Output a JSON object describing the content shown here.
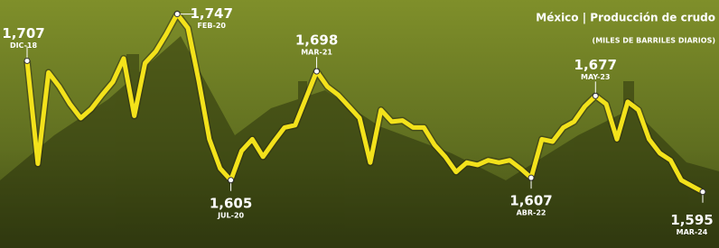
{
  "chart_data": {
    "type": "line",
    "title": "México | Producción de crudo",
    "subtitle": "(MILES DE BARRILES DIARIOS)",
    "categories": [
      "DIC-18",
      null,
      null,
      null,
      null,
      null,
      null,
      null,
      null,
      null,
      null,
      null,
      null,
      null,
      "FEB-20",
      null,
      null,
      null,
      null,
      "JUL-20",
      null,
      null,
      null,
      null,
      null,
      null,
      null,
      "MAR-21",
      null,
      null,
      null,
      null,
      null,
      null,
      null,
      null,
      null,
      null,
      null,
      null,
      null,
      null,
      null,
      null,
      null,
      null,
      null,
      "ABR-22",
      null,
      null,
      null,
      null,
      null,
      "MAY-23",
      null,
      null,
      null,
      null,
      null,
      null,
      null,
      null,
      null,
      "MAR-24"
    ],
    "values": [
      1707,
      1619,
      1697,
      1685,
      1670,
      1658,
      1666,
      1678,
      1689,
      1709,
      1660,
      1705,
      1715,
      1730,
      1747,
      1735,
      1690,
      1640,
      1615,
      1605,
      1630,
      1640,
      1625,
      1638,
      1650,
      1652,
      1675,
      1698,
      1685,
      1678,
      1668,
      1658,
      1620,
      1665,
      1655,
      1656,
      1650,
      1650,
      1635,
      1625,
      1612,
      1620,
      1618,
      1622,
      1620,
      1622,
      1615,
      1607,
      1640,
      1638,
      1650,
      1655,
      1668,
      1677,
      1670,
      1640,
      1672,
      1665,
      1640,
      1628,
      1622,
      1605,
      1600,
      1595
    ],
    "value_labels": [
      "1,707",
      null,
      null,
      null,
      null,
      null,
      null,
      null,
      null,
      null,
      null,
      null,
      null,
      null,
      "1,747",
      null,
      null,
      null,
      null,
      "1,605",
      null,
      null,
      null,
      null,
      null,
      null,
      null,
      "1,698",
      null,
      null,
      null,
      null,
      null,
      null,
      null,
      null,
      null,
      null,
      null,
      null,
      null,
      null,
      null,
      null,
      null,
      null,
      null,
      "1,607",
      null,
      null,
      null,
      null,
      null,
      "1,677",
      null,
      null,
      null,
      null,
      null,
      null,
      null,
      null,
      null,
      "1,595"
    ],
    "color": "#f3e21b",
    "ylim": [
      1547,
      1759
    ]
  }
}
